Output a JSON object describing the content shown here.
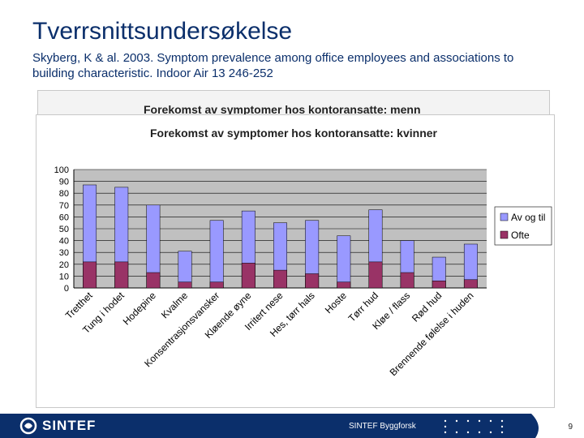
{
  "slide": {
    "title": "Tverrsnittsundersøkelse",
    "subtitle": "Skyberg, K & al. 2003. Symptom prevalence among office employees and associations to building characteristic. Indoor Air 13 246-252"
  },
  "back_chart": {
    "title": "Forekomst av symptomer hos kontoransatte: menn"
  },
  "chart_data": {
    "type": "bar",
    "title": "Forekomst av symptomer hos kontoransatte: kvinner",
    "xlabel": "",
    "ylabel": "",
    "ylim": [
      0,
      100
    ],
    "yticks": [
      0,
      10,
      20,
      30,
      40,
      50,
      60,
      70,
      80,
      90,
      100
    ],
    "grid": true,
    "legend_position": "right",
    "categories": [
      "Tretthet",
      "Tung i hodet",
      "Hodepine",
      "Kvalme",
      "Konsentrasjonsvansker",
      "Kløende øyne",
      "Irritert nese",
      "Hes, tørr hals",
      "Hoste",
      "Tørr hud",
      "Kløe / flass",
      "Rød hud",
      "Brennende følelse i huden"
    ],
    "series": [
      {
        "name": "Av og til",
        "color": "#9999ff",
        "values": [
          87,
          85,
          70,
          31,
          57,
          65,
          55,
          57,
          44,
          66,
          40,
          26,
          37
        ]
      },
      {
        "name": "Ofte",
        "color": "#993366",
        "values": [
          22,
          22,
          13,
          5,
          5,
          21,
          15,
          12,
          5,
          22,
          13,
          6,
          7
        ]
      }
    ]
  },
  "footer": {
    "logo_text": "SINTEF",
    "org_text": "SINTEF Byggforsk",
    "page_number": "9"
  }
}
